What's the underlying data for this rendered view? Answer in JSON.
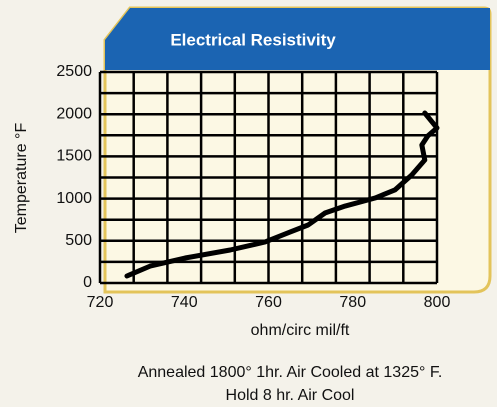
{
  "chart_data": {
    "type": "line",
    "title": "Electrical Resistivity",
    "xlabel": "ohm/circ mil/ft",
    "ylabel": "Temperature °F",
    "notes": [
      "Annealed 1800° 1hr. Air Cooled at 1325° F.",
      "Hold 8 hr. Air Cool"
    ],
    "xlim": [
      720,
      800
    ],
    "ylim": [
      0,
      2500
    ],
    "xticks": [
      720,
      740,
      760,
      780,
      800
    ],
    "yticks": [
      0,
      500,
      1000,
      1500,
      2000,
      2500
    ],
    "xgrid": [
      720,
      728,
      736,
      744,
      752,
      760,
      768,
      776,
      784,
      792,
      800
    ],
    "ygrid": [
      0,
      250,
      500,
      750,
      1000,
      1250,
      1500,
      1750,
      2000,
      2250,
      2500
    ],
    "grid": true,
    "series": [
      {
        "name": null,
        "color": "#000000",
        "x": [
          726.4,
          731.9,
          740.2,
          750.9,
          759.2,
          765.1,
          769.4,
          773.4,
          778.2,
          785.3,
          790.0,
          794.0,
          797.1,
          796.4,
          797.8,
          800.0,
          797.1
        ],
        "values": [
          83,
          200,
          296,
          391,
          486,
          604,
          687,
          829,
          912,
          1007,
          1102,
          1280,
          1457,
          1635,
          1742,
          1837,
          2014
        ]
      }
    ]
  }
}
